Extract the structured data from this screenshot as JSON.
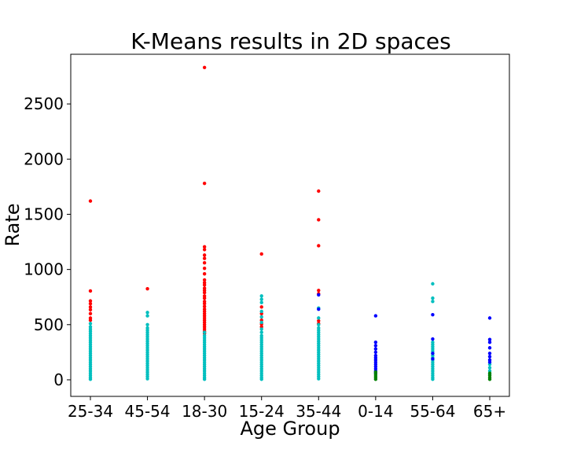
{
  "chart_data": {
    "type": "scatter",
    "title": "K-Means results in 2D spaces",
    "xlabel": "Age Group",
    "ylabel": "Rate",
    "categories": [
      "25-34",
      "45-54",
      "18-30",
      "15-24",
      "35-44",
      "0-14",
      "55-64",
      "65+"
    ],
    "ylim": [
      -150,
      2950
    ],
    "yticks": [
      0,
      500,
      1000,
      1500,
      2000,
      2500
    ],
    "grid": false,
    "legend": "none",
    "series": [
      {
        "color": "#ff0000",
        "points": [
          {
            "x": "25-34",
            "y": 1620
          },
          {
            "x": "25-34",
            "y": 805
          },
          {
            "x": "25-34",
            "y": 715
          },
          {
            "x": "25-34",
            "y": 690
          },
          {
            "x": "25-34",
            "y": 660
          },
          {
            "x": "25-34",
            "y": 635
          },
          {
            "x": "25-34",
            "y": 600
          },
          {
            "x": "25-34",
            "y": 560
          },
          {
            "x": "25-34",
            "y": 540
          },
          {
            "x": "45-54",
            "y": 825
          },
          {
            "x": "18-30",
            "y": 2830
          },
          {
            "x": "18-30",
            "y": 1780
          },
          {
            "x": "18-30",
            "y": 1205
          },
          {
            "x": "18-30",
            "y": 1180
          },
          {
            "x": "18-30",
            "y": 1130
          },
          {
            "x": "18-30",
            "y": 1100
          },
          {
            "x": "18-30",
            "y": 1060
          },
          {
            "x": "18-30",
            "y": 1010
          },
          {
            "x": "18-30",
            "y": 960
          },
          {
            "x": "18-30",
            "y": 905
          },
          {
            "x": "18-30",
            "y": 880
          },
          {
            "x": "18-30",
            "y": 860
          },
          {
            "x": "18-30",
            "y": 830
          },
          {
            "x": "18-30",
            "y": 810
          },
          {
            "x": "18-30",
            "y": 790
          },
          {
            "x": "18-30",
            "y": 760
          },
          {
            "x": "18-30",
            "y": 740
          },
          {
            "x": "18-30",
            "y": 710
          },
          {
            "x": "18-30",
            "y": 690
          },
          {
            "x": "18-30",
            "y": 665
          },
          {
            "x": "18-30",
            "y": 640
          },
          {
            "x": "18-30",
            "y": 620
          },
          {
            "x": "18-30",
            "y": 600
          },
          {
            "x": "18-30",
            "y": 580
          },
          {
            "x": "18-30",
            "y": 560
          },
          {
            "x": "18-30",
            "y": 540
          },
          {
            "x": "18-30",
            "y": 520
          },
          {
            "x": "18-30",
            "y": 500
          },
          {
            "x": "18-30",
            "y": 480
          },
          {
            "x": "18-30",
            "y": 460
          },
          {
            "x": "18-30",
            "y": 440
          },
          {
            "x": "18-30",
            "y": 420
          },
          {
            "x": "15-24",
            "y": 1140
          },
          {
            "x": "15-24",
            "y": 660
          },
          {
            "x": "15-24",
            "y": 600
          },
          {
            "x": "15-24",
            "y": 540
          },
          {
            "x": "15-24",
            "y": 505
          },
          {
            "x": "15-24",
            "y": 480
          },
          {
            "x": "35-44",
            "y": 1710
          },
          {
            "x": "35-44",
            "y": 1450
          },
          {
            "x": "35-44",
            "y": 1215
          },
          {
            "x": "35-44",
            "y": 810
          },
          {
            "x": "35-44",
            "y": 780
          },
          {
            "x": "35-44",
            "y": 535
          },
          {
            "x": "35-44",
            "y": 510
          }
        ]
      },
      {
        "color": "#00bfbf",
        "points": [
          {
            "x": "25-34",
            "y": 510
          },
          {
            "x": "25-34",
            "y": 480
          },
          {
            "x": "25-34",
            "y": 460
          },
          {
            "x": "25-34",
            "y": 440
          },
          {
            "x": "25-34",
            "y": 420
          },
          {
            "x": "25-34",
            "y": 400
          },
          {
            "x": "25-34",
            "y": 380
          },
          {
            "x": "25-34",
            "y": 360
          },
          {
            "x": "25-34",
            "y": 340
          },
          {
            "x": "25-34",
            "y": 320
          },
          {
            "x": "25-34",
            "y": 300
          },
          {
            "x": "25-34",
            "y": 280
          },
          {
            "x": "25-34",
            "y": 260
          },
          {
            "x": "25-34",
            "y": 240
          },
          {
            "x": "25-34",
            "y": 220
          },
          {
            "x": "25-34",
            "y": 200
          },
          {
            "x": "25-34",
            "y": 180
          },
          {
            "x": "25-34",
            "y": 160
          },
          {
            "x": "25-34",
            "y": 140
          },
          {
            "x": "25-34",
            "y": 120
          },
          {
            "x": "25-34",
            "y": 100
          },
          {
            "x": "25-34",
            "y": 80
          },
          {
            "x": "25-34",
            "y": 60
          },
          {
            "x": "25-34",
            "y": 40
          },
          {
            "x": "25-34",
            "y": 20
          },
          {
            "x": "25-34",
            "y": 5
          },
          {
            "x": "45-54",
            "y": 610
          },
          {
            "x": "45-54",
            "y": 580
          },
          {
            "x": "45-54",
            "y": 500
          },
          {
            "x": "45-54",
            "y": 470
          },
          {
            "x": "45-54",
            "y": 450
          },
          {
            "x": "45-54",
            "y": 430
          },
          {
            "x": "45-54",
            "y": 410
          },
          {
            "x": "45-54",
            "y": 390
          },
          {
            "x": "45-54",
            "y": 370
          },
          {
            "x": "45-54",
            "y": 350
          },
          {
            "x": "45-54",
            "y": 330
          },
          {
            "x": "45-54",
            "y": 310
          },
          {
            "x": "45-54",
            "y": 290
          },
          {
            "x": "45-54",
            "y": 270
          },
          {
            "x": "45-54",
            "y": 250
          },
          {
            "x": "45-54",
            "y": 230
          },
          {
            "x": "45-54",
            "y": 210
          },
          {
            "x": "45-54",
            "y": 190
          },
          {
            "x": "45-54",
            "y": 170
          },
          {
            "x": "45-54",
            "y": 150
          },
          {
            "x": "45-54",
            "y": 130
          },
          {
            "x": "45-54",
            "y": 110
          },
          {
            "x": "45-54",
            "y": 90
          },
          {
            "x": "45-54",
            "y": 70
          },
          {
            "x": "45-54",
            "y": 50
          },
          {
            "x": "45-54",
            "y": 30
          },
          {
            "x": "45-54",
            "y": 10
          },
          {
            "x": "18-30",
            "y": 430
          },
          {
            "x": "18-30",
            "y": 400
          },
          {
            "x": "18-30",
            "y": 380
          },
          {
            "x": "18-30",
            "y": 360
          },
          {
            "x": "18-30",
            "y": 340
          },
          {
            "x": "18-30",
            "y": 320
          },
          {
            "x": "18-30",
            "y": 300
          },
          {
            "x": "18-30",
            "y": 280
          },
          {
            "x": "18-30",
            "y": 260
          },
          {
            "x": "18-30",
            "y": 240
          },
          {
            "x": "18-30",
            "y": 220
          },
          {
            "x": "18-30",
            "y": 200
          },
          {
            "x": "18-30",
            "y": 180
          },
          {
            "x": "18-30",
            "y": 160
          },
          {
            "x": "18-30",
            "y": 140
          },
          {
            "x": "18-30",
            "y": 120
          },
          {
            "x": "18-30",
            "y": 100
          },
          {
            "x": "18-30",
            "y": 80
          },
          {
            "x": "18-30",
            "y": 60
          },
          {
            "x": "18-30",
            "y": 40
          },
          {
            "x": "18-30",
            "y": 20
          },
          {
            "x": "18-30",
            "y": 5
          },
          {
            "x": "15-24",
            "y": 760
          },
          {
            "x": "15-24",
            "y": 730
          },
          {
            "x": "15-24",
            "y": 700
          },
          {
            "x": "15-24",
            "y": 620
          },
          {
            "x": "15-24",
            "y": 570
          },
          {
            "x": "15-24",
            "y": 520
          },
          {
            "x": "15-24",
            "y": 460
          },
          {
            "x": "15-24",
            "y": 430
          },
          {
            "x": "15-24",
            "y": 400
          },
          {
            "x": "15-24",
            "y": 380
          },
          {
            "x": "15-24",
            "y": 360
          },
          {
            "x": "15-24",
            "y": 340
          },
          {
            "x": "15-24",
            "y": 320
          },
          {
            "x": "15-24",
            "y": 300
          },
          {
            "x": "15-24",
            "y": 280
          },
          {
            "x": "15-24",
            "y": 260
          },
          {
            "x": "15-24",
            "y": 240
          },
          {
            "x": "15-24",
            "y": 220
          },
          {
            "x": "15-24",
            "y": 200
          },
          {
            "x": "15-24",
            "y": 180
          },
          {
            "x": "15-24",
            "y": 160
          },
          {
            "x": "15-24",
            "y": 140
          },
          {
            "x": "15-24",
            "y": 120
          },
          {
            "x": "15-24",
            "y": 100
          },
          {
            "x": "15-24",
            "y": 80
          },
          {
            "x": "15-24",
            "y": 60
          },
          {
            "x": "15-24",
            "y": 40
          },
          {
            "x": "15-24",
            "y": 20
          },
          {
            "x": "15-24",
            "y": 5
          },
          {
            "x": "35-44",
            "y": 650
          },
          {
            "x": "35-44",
            "y": 560
          },
          {
            "x": "35-44",
            "y": 500
          },
          {
            "x": "35-44",
            "y": 470
          },
          {
            "x": "35-44",
            "y": 450
          },
          {
            "x": "35-44",
            "y": 430
          },
          {
            "x": "35-44",
            "y": 410
          },
          {
            "x": "35-44",
            "y": 390
          },
          {
            "x": "35-44",
            "y": 370
          },
          {
            "x": "35-44",
            "y": 350
          },
          {
            "x": "35-44",
            "y": 330
          },
          {
            "x": "35-44",
            "y": 310
          },
          {
            "x": "35-44",
            "y": 290
          },
          {
            "x": "35-44",
            "y": 270
          },
          {
            "x": "35-44",
            "y": 250
          },
          {
            "x": "35-44",
            "y": 230
          },
          {
            "x": "35-44",
            "y": 210
          },
          {
            "x": "35-44",
            "y": 190
          },
          {
            "x": "35-44",
            "y": 170
          },
          {
            "x": "35-44",
            "y": 150
          },
          {
            "x": "35-44",
            "y": 130
          },
          {
            "x": "35-44",
            "y": 110
          },
          {
            "x": "35-44",
            "y": 90
          },
          {
            "x": "35-44",
            "y": 70
          },
          {
            "x": "35-44",
            "y": 50
          },
          {
            "x": "35-44",
            "y": 30
          },
          {
            "x": "35-44",
            "y": 10
          },
          {
            "x": "55-64",
            "y": 870
          },
          {
            "x": "55-64",
            "y": 740
          },
          {
            "x": "55-64",
            "y": 710
          },
          {
            "x": "55-64",
            "y": 340
          },
          {
            "x": "55-64",
            "y": 320
          },
          {
            "x": "55-64",
            "y": 300
          },
          {
            "x": "55-64",
            "y": 280
          },
          {
            "x": "55-64",
            "y": 260
          },
          {
            "x": "55-64",
            "y": 240
          },
          {
            "x": "55-64",
            "y": 220
          },
          {
            "x": "55-64",
            "y": 200
          },
          {
            "x": "55-64",
            "y": 180
          },
          {
            "x": "55-64",
            "y": 160
          },
          {
            "x": "55-64",
            "y": 140
          },
          {
            "x": "55-64",
            "y": 120
          },
          {
            "x": "55-64",
            "y": 100
          },
          {
            "x": "55-64",
            "y": 80
          },
          {
            "x": "55-64",
            "y": 60
          },
          {
            "x": "55-64",
            "y": 40
          },
          {
            "x": "55-64",
            "y": 20
          },
          {
            "x": "55-64",
            "y": 5
          },
          {
            "x": "65+",
            "y": 140
          },
          {
            "x": "65+",
            "y": 110
          },
          {
            "x": "65+",
            "y": 80
          },
          {
            "x": "65+",
            "y": 50
          }
        ]
      },
      {
        "color": "#0000ff",
        "points": [
          {
            "x": "35-44",
            "y": 770
          },
          {
            "x": "35-44",
            "y": 640
          },
          {
            "x": "0-14",
            "y": 580
          },
          {
            "x": "0-14",
            "y": 340
          },
          {
            "x": "0-14",
            "y": 310
          },
          {
            "x": "0-14",
            "y": 280
          },
          {
            "x": "0-14",
            "y": 250
          },
          {
            "x": "0-14",
            "y": 220
          },
          {
            "x": "0-14",
            "y": 200
          },
          {
            "x": "0-14",
            "y": 180
          },
          {
            "x": "0-14",
            "y": 160
          },
          {
            "x": "0-14",
            "y": 140
          },
          {
            "x": "0-14",
            "y": 120
          },
          {
            "x": "0-14",
            "y": 100
          },
          {
            "x": "0-14",
            "y": 80
          },
          {
            "x": "0-14",
            "y": 60
          },
          {
            "x": "55-64",
            "y": 590
          },
          {
            "x": "55-64",
            "y": 370
          },
          {
            "x": "55-64",
            "y": 240
          },
          {
            "x": "55-64",
            "y": 190
          },
          {
            "x": "65+",
            "y": 560
          },
          {
            "x": "65+",
            "y": 365
          },
          {
            "x": "65+",
            "y": 340
          },
          {
            "x": "65+",
            "y": 290
          },
          {
            "x": "65+",
            "y": 240
          },
          {
            "x": "65+",
            "y": 210
          },
          {
            "x": "65+",
            "y": 180
          },
          {
            "x": "65+",
            "y": 160
          }
        ]
      },
      {
        "color": "#008000",
        "points": [
          {
            "x": "0-14",
            "y": 70
          },
          {
            "x": "0-14",
            "y": 50
          },
          {
            "x": "0-14",
            "y": 35
          },
          {
            "x": "0-14",
            "y": 20
          },
          {
            "x": "0-14",
            "y": 5
          },
          {
            "x": "65+",
            "y": 60
          },
          {
            "x": "65+",
            "y": 40
          },
          {
            "x": "65+",
            "y": 20
          },
          {
            "x": "65+",
            "y": 5
          }
        ]
      }
    ]
  }
}
